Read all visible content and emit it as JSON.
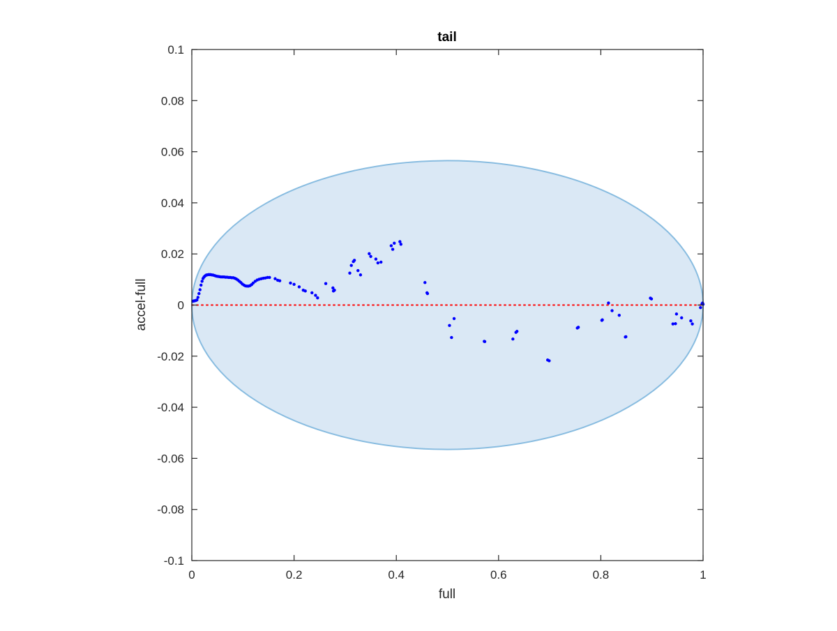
{
  "chart_data": {
    "type": "scatter",
    "title": "tail",
    "xlabel": "full",
    "ylabel": "accel-full",
    "xlim": [
      0,
      1
    ],
    "ylim": [
      -0.1,
      0.1
    ],
    "x_ticks": [
      0,
      0.2,
      0.4,
      0.6,
      0.8,
      1
    ],
    "x_tick_labels": [
      "0",
      "0.2",
      "0.4",
      "0.6",
      "0.8",
      "1"
    ],
    "y_ticks": [
      -0.1,
      -0.08,
      -0.06,
      -0.04,
      -0.02,
      0,
      0.02,
      0.04,
      0.06,
      0.08,
      0.1
    ],
    "y_tick_labels": [
      "-0.1",
      "-0.08",
      "-0.06",
      "-0.04",
      "-0.02",
      "0",
      "0.02",
      "0.04",
      "0.06",
      "0.08",
      "0.1"
    ],
    "grid": false,
    "reference_line": {
      "y": 0,
      "color": "#ff0000",
      "style": "dotted"
    },
    "ellipse": {
      "center": [
        0.5,
        0.0
      ],
      "radius_x": 0.5,
      "radius_y": 0.0565,
      "fill": "#dae8f5",
      "stroke": "#88bce0"
    },
    "series": [
      {
        "color": "#0000ff",
        "points": [
          [
            0.002,
            0.0015
          ],
          [
            0.004,
            0.0016
          ],
          [
            0.006,
            0.0017
          ],
          [
            0.008,
            0.0018
          ],
          [
            0.01,
            0.002
          ],
          [
            0.012,
            0.003
          ],
          [
            0.014,
            0.0045
          ],
          [
            0.016,
            0.006
          ],
          [
            0.018,
            0.0078
          ],
          [
            0.02,
            0.0093
          ],
          [
            0.022,
            0.0104
          ],
          [
            0.024,
            0.011
          ],
          [
            0.026,
            0.0114
          ],
          [
            0.028,
            0.0117
          ],
          [
            0.03,
            0.0118
          ],
          [
            0.033,
            0.0119
          ],
          [
            0.036,
            0.0119
          ],
          [
            0.039,
            0.0118
          ],
          [
            0.042,
            0.0117
          ],
          [
            0.045,
            0.0115
          ],
          [
            0.048,
            0.0113
          ],
          [
            0.051,
            0.0112
          ],
          [
            0.054,
            0.0111
          ],
          [
            0.057,
            0.011
          ],
          [
            0.06,
            0.011
          ],
          [
            0.063,
            0.011
          ],
          [
            0.066,
            0.0109
          ],
          [
            0.069,
            0.0109
          ],
          [
            0.072,
            0.0108
          ],
          [
            0.075,
            0.0108
          ],
          [
            0.078,
            0.0107
          ],
          [
            0.081,
            0.0107
          ],
          [
            0.084,
            0.0105
          ],
          [
            0.087,
            0.0102
          ],
          [
            0.09,
            0.0098
          ],
          [
            0.093,
            0.0093
          ],
          [
            0.096,
            0.0088
          ],
          [
            0.099,
            0.0082
          ],
          [
            0.102,
            0.0078
          ],
          [
            0.105,
            0.0075
          ],
          [
            0.108,
            0.0074
          ],
          [
            0.111,
            0.0074
          ],
          [
            0.114,
            0.0076
          ],
          [
            0.117,
            0.008
          ],
          [
            0.12,
            0.0086
          ],
          [
            0.124,
            0.0093
          ],
          [
            0.128,
            0.0098
          ],
          [
            0.132,
            0.0101
          ],
          [
            0.136,
            0.0103
          ],
          [
            0.14,
            0.0105
          ],
          [
            0.144,
            0.0106
          ],
          [
            0.148,
            0.0108
          ],
          [
            0.152,
            0.0108
          ],
          [
            0.163,
            0.0103
          ],
          [
            0.168,
            0.0097
          ],
          [
            0.172,
            0.0095
          ],
          [
            0.193,
            0.0086
          ],
          [
            0.2,
            0.0081
          ],
          [
            0.21,
            0.0071
          ],
          [
            0.218,
            0.0058
          ],
          [
            0.222,
            0.0055
          ],
          [
            0.235,
            0.0048
          ],
          [
            0.242,
            0.0038
          ],
          [
            0.246,
            0.0028
          ],
          [
            0.262,
            0.0084
          ],
          [
            0.276,
            0.0067
          ],
          [
            0.277,
            0.0055
          ],
          [
            0.279,
            0.0058
          ],
          [
            0.309,
            0.0125
          ],
          [
            0.312,
            0.0155
          ],
          [
            0.316,
            0.017
          ],
          [
            0.318,
            0.0175
          ],
          [
            0.325,
            0.0135
          ],
          [
            0.33,
            0.0118
          ],
          [
            0.347,
            0.0201
          ],
          [
            0.35,
            0.019
          ],
          [
            0.36,
            0.018
          ],
          [
            0.364,
            0.0165
          ],
          [
            0.37,
            0.0168
          ],
          [
            0.39,
            0.0232
          ],
          [
            0.393,
            0.0218
          ],
          [
            0.396,
            0.0242
          ],
          [
            0.407,
            0.0248
          ],
          [
            0.409,
            0.0238
          ],
          [
            0.456,
            0.0088
          ],
          [
            0.46,
            0.0048
          ],
          [
            0.461,
            0.0045
          ],
          [
            0.504,
            -0.008
          ],
          [
            0.508,
            -0.0127
          ],
          [
            0.513,
            -0.0053
          ],
          [
            0.572,
            -0.0142
          ],
          [
            0.573,
            -0.0143
          ],
          [
            0.628,
            -0.0133
          ],
          [
            0.634,
            -0.0107
          ],
          [
            0.636,
            -0.0103
          ],
          [
            0.696,
            -0.0215
          ],
          [
            0.699,
            -0.0218
          ],
          [
            0.754,
            -0.009
          ],
          [
            0.756,
            -0.0087
          ],
          [
            0.802,
            -0.006
          ],
          [
            0.803,
            -0.0058
          ],
          [
            0.815,
            0.0008
          ],
          [
            0.822,
            -0.0022
          ],
          [
            0.836,
            -0.004
          ],
          [
            0.848,
            -0.0125
          ],
          [
            0.849,
            -0.0124
          ],
          [
            0.897,
            0.0027
          ],
          [
            0.899,
            0.0024
          ],
          [
            0.941,
            -0.0074
          ],
          [
            0.946,
            -0.0073
          ],
          [
            0.948,
            -0.0035
          ],
          [
            0.958,
            -0.005
          ],
          [
            0.976,
            -0.0062
          ],
          [
            0.979,
            -0.0074
          ],
          [
            0.995,
            -0.001
          ],
          [
            0.998,
            0.0005
          ],
          [
            0.999,
            0.0008
          ],
          [
            1.0,
            0.0003
          ]
        ]
      }
    ]
  }
}
